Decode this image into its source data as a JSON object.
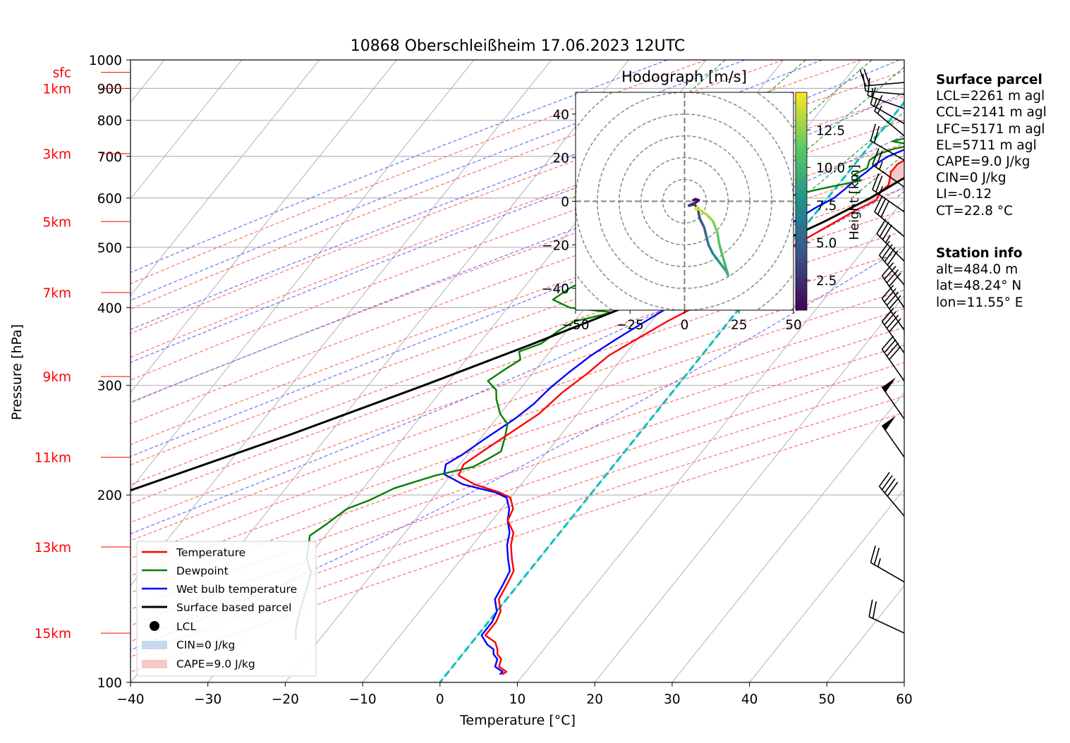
{
  "chart_data": {
    "type": "skew-t log-p",
    "title": "10868 Oberschleißheim 17.06.2023 12UTC",
    "xlabel": "Temperature [°C]",
    "ylabel": "Pressure [hPa]",
    "xlim": [
      -40,
      60
    ],
    "ylim": [
      1000,
      100
    ],
    "x_ticks": [
      "−40",
      "−30",
      "−20",
      "−10",
      "0",
      "10",
      "20",
      "30",
      "40",
      "50",
      "60"
    ],
    "y_ticks": [
      {
        "p": 1000,
        "label": "1000"
      },
      {
        "p": 900,
        "label": "900"
      },
      {
        "p": 800,
        "label": "800"
      },
      {
        "p": 700,
        "label": "700"
      },
      {
        "p": 600,
        "label": "600"
      },
      {
        "p": 500,
        "label": "500"
      },
      {
        "p": 400,
        "label": "400"
      },
      {
        "p": 300,
        "label": "300"
      },
      {
        "p": 200,
        "label": "200"
      },
      {
        "p": 100,
        "label": "100"
      }
    ],
    "height_labels": [
      {
        "label": "sfc",
        "p": 955
      },
      {
        "label": "1km",
        "p": 900
      },
      {
        "label": "3km",
        "p": 707
      },
      {
        "label": "5km",
        "p": 550
      },
      {
        "label": "7km",
        "p": 423
      },
      {
        "label": "9km",
        "p": 310
      },
      {
        "label": "11km",
        "p": 230
      },
      {
        "label": "13km",
        "p": 165
      },
      {
        "label": "15km",
        "p": 120
      }
    ],
    "series": [
      {
        "name": "Temperature",
        "color": "#ff0000",
        "points": [
          [
            24.5,
            955
          ],
          [
            22.5,
            955
          ],
          [
            21.5,
            940
          ],
          [
            20,
            925
          ],
          [
            17,
            900
          ],
          [
            14,
            870
          ],
          [
            11.5,
            845
          ],
          [
            10.5,
            830
          ],
          [
            9,
            810
          ],
          [
            8.8,
            780
          ],
          [
            8.5,
            745
          ],
          [
            8,
            720
          ],
          [
            6.5,
            700
          ],
          [
            5.5,
            680
          ],
          [
            5.5,
            660
          ],
          [
            6,
            645
          ],
          [
            6.5,
            630
          ],
          [
            6.2,
            612
          ],
          [
            6.5,
            595
          ],
          [
            5,
            575
          ],
          [
            3.2,
            545
          ],
          [
            1,
            510
          ],
          [
            -0.5,
            480
          ],
          [
            -1,
            460
          ],
          [
            -2,
            445
          ],
          [
            -4,
            425
          ],
          [
            -6,
            400
          ],
          [
            -8,
            380
          ],
          [
            -10,
            357
          ],
          [
            -12,
            335
          ],
          [
            -13,
            312
          ],
          [
            -14.2,
            292
          ],
          [
            -15,
            270
          ],
          [
            -16.7,
            252
          ],
          [
            -18.3,
            236
          ],
          [
            -19.5,
            224
          ],
          [
            -19,
            215
          ],
          [
            -16,
            208
          ],
          [
            -12,
            202
          ],
          [
            -10,
            198
          ],
          [
            -8.5,
            190
          ],
          [
            -8,
            182
          ],
          [
            -6,
            174
          ],
          [
            -5,
            166
          ],
          [
            -3.5,
            158
          ],
          [
            -2,
            151
          ],
          [
            -1.5,
            144
          ],
          [
            -1,
            136
          ],
          [
            0.5,
            130
          ],
          [
            1,
            125
          ],
          [
            1,
            119
          ],
          [
            3,
            116
          ],
          [
            4,
            113
          ],
          [
            4.5,
            111
          ],
          [
            5.5,
            109
          ],
          [
            6,
            106
          ],
          [
            7.5,
            104
          ],
          [
            7.2,
            103
          ]
        ]
      },
      {
        "name": "Dewpoint",
        "color": "#008000",
        "points": [
          [
            6.5,
            955
          ],
          [
            5.5,
            950
          ],
          [
            6.5,
            940
          ],
          [
            7,
            925
          ],
          [
            7.5,
            900
          ],
          [
            8,
            880
          ],
          [
            8.5,
            860
          ],
          [
            9,
            840
          ],
          [
            9.5,
            820
          ],
          [
            9,
            800
          ],
          [
            7.5,
            780
          ],
          [
            5.5,
            760
          ],
          [
            2.5,
            740
          ],
          [
            5.5,
            730
          ],
          [
            3.5,
            720
          ],
          [
            2,
            705
          ],
          [
            1.5,
            690
          ],
          [
            2,
            670
          ],
          [
            1,
            655
          ],
          [
            2.5,
            640
          ],
          [
            -2,
            620
          ],
          [
            -5,
            605
          ],
          [
            -10,
            600
          ],
          [
            -12,
            585
          ],
          [
            -14,
            570
          ],
          [
            -18,
            555
          ],
          [
            -20.5,
            540
          ],
          [
            -18.5,
            525
          ],
          [
            -17,
            515
          ],
          [
            -10,
            510
          ],
          [
            -8,
            495
          ],
          [
            -9,
            480
          ],
          [
            -18,
            465
          ],
          [
            -22,
            450
          ],
          [
            -24,
            430
          ],
          [
            -25,
            412
          ],
          [
            -22,
            400
          ],
          [
            -16,
            393
          ],
          [
            -20,
            380
          ],
          [
            -21,
            368
          ],
          [
            -22,
            350
          ],
          [
            -24,
            340
          ],
          [
            -23,
            330
          ],
          [
            -24,
            318
          ],
          [
            -25,
            305
          ],
          [
            -23,
            295
          ],
          [
            -22,
            285
          ],
          [
            -20,
            270
          ],
          [
            -18,
            260
          ],
          [
            -17,
            248
          ],
          [
            -16,
            235
          ],
          [
            -17,
            228
          ],
          [
            -18,
            222
          ],
          [
            -22,
            215
          ],
          [
            -26,
            205
          ],
          [
            -28,
            196
          ],
          [
            -30,
            190
          ],
          [
            -31,
            180
          ],
          [
            -32,
            172
          ],
          [
            -31,
            165
          ],
          [
            -30,
            158
          ],
          [
            -28,
            150
          ],
          [
            -27,
            142
          ],
          [
            -26,
            134
          ],
          [
            -25,
            127
          ],
          [
            -24,
            121
          ],
          [
            -23,
            117
          ]
        ]
      },
      {
        "name": "Wet bulb temperature",
        "color": "#0000ff",
        "points": [
          [
            13,
            955
          ],
          [
            11.5,
            945
          ],
          [
            11,
            925
          ],
          [
            10,
            900
          ],
          [
            9,
            880
          ],
          [
            8,
            860
          ],
          [
            7.2,
            840
          ],
          [
            7,
            820
          ],
          [
            6,
            800
          ],
          [
            5.5,
            780
          ],
          [
            6,
            755
          ],
          [
            6,
            740
          ],
          [
            5.5,
            725
          ],
          [
            3.5,
            700
          ],
          [
            2.7,
            680
          ],
          [
            2.3,
            660
          ],
          [
            1.7,
            640
          ],
          [
            1.3,
            620
          ],
          [
            0.8,
            600
          ],
          [
            -0.5,
            580
          ],
          [
            -1.5,
            560
          ],
          [
            -2.3,
            540
          ],
          [
            -3.2,
            510
          ],
          [
            -4.2,
            480
          ],
          [
            -4.8,
            460
          ],
          [
            -5.5,
            445
          ],
          [
            -7.2,
            425
          ],
          [
            -9.3,
            400
          ],
          [
            -11.2,
            375
          ],
          [
            -12.8,
            355
          ],
          [
            -14.3,
            335
          ],
          [
            -15.4,
            315
          ],
          [
            -16.2,
            298
          ],
          [
            -16.7,
            280
          ],
          [
            -17.6,
            265
          ],
          [
            -19.5,
            245
          ],
          [
            -20.7,
            232
          ],
          [
            -21.8,
            224
          ],
          [
            -21,
            216
          ],
          [
            -17.5,
            208
          ],
          [
            -12.5,
            202
          ],
          [
            -10.5,
            198
          ],
          [
            -9,
            190
          ],
          [
            -8,
            182
          ],
          [
            -6.5,
            174
          ],
          [
            -5.5,
            166
          ],
          [
            -4,
            158
          ],
          [
            -2.5,
            151
          ],
          [
            -2,
            144
          ],
          [
            -1.5,
            136
          ],
          [
            0,
            130
          ],
          [
            0.5,
            125
          ],
          [
            0.5,
            119
          ],
          [
            2.2,
            115
          ],
          [
            3.5,
            113
          ],
          [
            4,
            111
          ],
          [
            5,
            109
          ],
          [
            5.5,
            106
          ],
          [
            7,
            104
          ],
          [
            6.9,
            103
          ]
        ]
      },
      {
        "name": "Surface based parcel",
        "color": "#000000",
        "points": [
          [
            25,
            955
          ],
          [
            11,
            732
          ],
          [
            9.5,
            700
          ],
          [
            8,
            650
          ],
          [
            5.5,
            600
          ],
          [
            2,
            550
          ],
          [
            -2.5,
            500
          ],
          [
            -8,
            450
          ],
          [
            -15,
            400
          ],
          [
            -23,
            350
          ],
          [
            -32.8,
            300
          ],
          [
            -45,
            250
          ],
          [
            -61.1,
            200
          ],
          [
            -71.7,
            175
          ],
          [
            -83.3,
            150
          ],
          [
            -95.8,
            125
          ],
          [
            -104.5,
            110
          ]
        ]
      }
    ],
    "lcl": {
      "t": 11,
      "p": 732,
      "label": "LCL"
    },
    "cin_label": "CIN=0 J/kg",
    "cape_label": "CAPE=9.0 J/kg",
    "legend_position": "lower-left",
    "wind_barbs": [
      {
        "p": 920,
        "dir": 265,
        "kt": 20
      },
      {
        "p": 880,
        "dir": 275,
        "kt": 10
      },
      {
        "p": 835,
        "dir": 290,
        "kt": 15
      },
      {
        "p": 790,
        "dir": 300,
        "kt": 15
      },
      {
        "p": 755,
        "dir": 310,
        "kt": 15
      },
      {
        "p": 690,
        "dir": 300,
        "kt": 20
      },
      {
        "p": 625,
        "dir": 305,
        "kt": 25
      },
      {
        "p": 570,
        "dir": 305,
        "kt": 25
      },
      {
        "p": 520,
        "dir": 310,
        "kt": 30
      },
      {
        "p": 475,
        "dir": 315,
        "kt": 35
      },
      {
        "p": 435,
        "dir": 320,
        "kt": 40
      },
      {
        "p": 400,
        "dir": 325,
        "kt": 40
      },
      {
        "p": 368,
        "dir": 325,
        "kt": 40
      },
      {
        "p": 338,
        "dir": 325,
        "kt": 40
      },
      {
        "p": 305,
        "dir": 325,
        "kt": 40
      },
      {
        "p": 265,
        "dir": 325,
        "kt": 50
      },
      {
        "p": 230,
        "dir": 325,
        "kt": 50
      },
      {
        "p": 185,
        "dir": 320,
        "kt": 40
      },
      {
        "p": 145,
        "dir": 300,
        "kt": 25
      },
      {
        "p": 120,
        "dir": 295,
        "kt": 20
      }
    ],
    "hodograph": {
      "title": "Hodograph [m/s]",
      "xlim": [
        -50,
        50
      ],
      "ylim": [
        -50,
        50
      ],
      "ticks": [
        -50,
        -25,
        0,
        25,
        50
      ],
      "y_ticks": [
        -40,
        -20,
        0,
        20,
        40
      ],
      "tick_labels_x": [
        "−50",
        "−25",
        "0",
        "25",
        "50"
      ],
      "tick_labels_y": [
        "−40",
        "−20",
        "0",
        "20",
        "40"
      ],
      "ring_step": 10,
      "colorbar_label": "Height [km]",
      "colorbar_ticks": [
        "2.5",
        "5.0",
        "7.5",
        "10.0",
        "12.5"
      ],
      "colorbar_range": [
        0.5,
        15
      ],
      "points": [
        {
          "u": 4,
          "v": 0.5,
          "h": 0.5
        },
        {
          "u": 5,
          "v": 1,
          "h": 0.8
        },
        {
          "u": 6.5,
          "v": 0.5,
          "h": 1.2
        },
        {
          "u": 4,
          "v": -1.5,
          "h": 1.7
        },
        {
          "u": 2,
          "v": -2,
          "h": 2.2
        },
        {
          "u": 4,
          "v": -1,
          "h": 2.8
        },
        {
          "u": 6,
          "v": -3,
          "h": 3.3
        },
        {
          "u": 7,
          "v": -8,
          "h": 4.0
        },
        {
          "u": 9,
          "v": -12,
          "h": 4.8
        },
        {
          "u": 10,
          "v": -16,
          "h": 5.6
        },
        {
          "u": 11,
          "v": -20,
          "h": 6.4
        },
        {
          "u": 13,
          "v": -24,
          "h": 7.3
        },
        {
          "u": 16,
          "v": -28,
          "h": 8.1
        },
        {
          "u": 19,
          "v": -32,
          "h": 8.9
        },
        {
          "u": 20,
          "v": -34,
          "h": 9.6
        },
        {
          "u": 18,
          "v": -27,
          "h": 10.3
        },
        {
          "u": 16,
          "v": -20,
          "h": 11.0
        },
        {
          "u": 15,
          "v": -14,
          "h": 11.7
        },
        {
          "u": 13,
          "v": -9,
          "h": 12.4
        },
        {
          "u": 10,
          "v": -6,
          "h": 13.1
        },
        {
          "u": 7,
          "v": -4,
          "h": 13.8
        },
        {
          "u": 5,
          "v": -3.5,
          "h": 14.3
        },
        {
          "u": 6,
          "v": -2.5,
          "h": 14.8
        }
      ]
    }
  },
  "legend": {
    "temperature": "Temperature",
    "dewpoint": "Dewpoint",
    "wetbulb": "Wet bulb temperature",
    "parcel": "Surface based parcel",
    "lcl": "LCL",
    "cin": "CIN=0 J/kg",
    "cape": "CAPE=9.0 J/kg"
  },
  "surface_parcel": {
    "header": "Surface parcel",
    "lines": [
      "LCL=2261 m agl",
      "CCL=2141 m agl",
      "LFC=5171 m agl",
      "EL=5711 m agl",
      "CAPE=9.0 J/kg",
      "CIN=0 J/kg",
      "LI=-0.12",
      "CT=22.8 °C"
    ]
  },
  "station_info": {
    "header": "Station info",
    "lines": [
      "alt=484.0 m",
      "lat=48.24° N",
      "lon=11.55° E"
    ]
  },
  "colors": {
    "isotherm": "#b0b0b0",
    "dry_adiabat": "#ff7070",
    "moist_adiabat": "#7070f0",
    "mixing_ratio": "#2a9a2a",
    "zero_isotherm": "#00c0c0",
    "height_label": "#ff0000",
    "cape_fill": "#f5c9c9",
    "cin_fill": "#c6d9ea"
  }
}
